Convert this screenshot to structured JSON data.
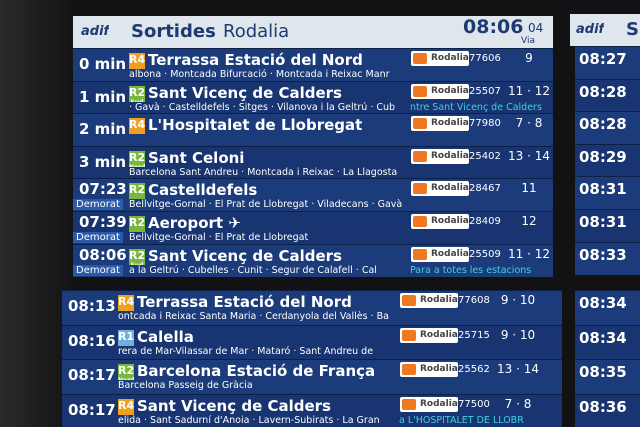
{
  "header": {
    "logo": "adif",
    "title_bold": "Sortides",
    "title": "Rodalia",
    "clock": "08:06",
    "seconds": "04",
    "platform_heading": "Via"
  },
  "boards": [
    {
      "rows": [
        {
          "time": "0 min",
          "line": "R4",
          "color": "#f0a020",
          "destination": "Terrassa Estació del Nord",
          "via": "albona · Montcada Bifurcació · Montcada i Reixac Manr",
          "operator": "Rodalia",
          "train": "77606",
          "platform": "9"
        },
        {
          "time": "1 min",
          "line": "R2",
          "line_sub": "Sud",
          "color": "#79b83a",
          "destination": "Sant Vicenç de Calders",
          "via": "· Gavà · Castelldefels · Sitges · Vilanova i la Geltrú · Cub",
          "operator": "Rodalia",
          "train": "25507",
          "platform": "11 · 12",
          "note": "ntre Sant Vicenç de Calders"
        },
        {
          "time": "2 min",
          "line": "R4",
          "color": "#f0a020",
          "destination": "L'Hospitalet de Llobregat",
          "operator": "Rodalia",
          "train": "77980",
          "platform": "7 · 8"
        },
        {
          "time": "3 min",
          "line": "R2",
          "line_sub": "Nord",
          "color": "#79b83a",
          "destination": "Sant Celoni",
          "via": "Barcelona Sant Andreu · Montcada i Reixac · La Llagosta",
          "operator": "Rodalia",
          "train": "25402",
          "platform": "13 · 14"
        },
        {
          "time": "07:23",
          "status": "Demorat",
          "line": "R2",
          "color": "#79b83a",
          "destination": "Castelldefels",
          "via": "Bellvitge-Gornal · El Prat de Llobregat · Viladecans · Gavà",
          "operator": "Rodalia",
          "train": "28467",
          "platform": "11"
        },
        {
          "time": "07:39",
          "status": "Demorat",
          "line": "R2",
          "color": "#79b83a",
          "destination": "Aeroport ✈",
          "via": "Bellvitge-Gornal · El Prat de Llobregat",
          "operator": "Rodalia",
          "train": "28409",
          "platform": "12"
        },
        {
          "time": "08:06",
          "status": "Demorat",
          "line": "R2",
          "line_sub": "Sud",
          "color": "#79b83a",
          "destination": "Sant Vicenç de Calders",
          "via": "a la Geltrú · Cubelles · Cunit · Segur de Calafell · Cal",
          "operator": "Rodalia",
          "train": "25509",
          "platform": "11 · 12",
          "note": "Para a totes les estacions"
        }
      ]
    },
    {
      "rows": [
        {
          "time": "08:13",
          "line": "R4",
          "color": "#f0a020",
          "destination": "Terrassa Estació del Nord",
          "via": "ontcada i Reixac Santa Maria · Cerdanyola del Vallès · Ba",
          "operator": "Rodalia",
          "train": "77608",
          "platform": "9 · 10"
        },
        {
          "time": "08:16",
          "line": "R1",
          "color": "#6fb0e0",
          "destination": "Calella",
          "via": "rera de Mar-Vilassar de Mar · Mataró · Sant Andreu de",
          "operator": "Rodalia",
          "train": "25715",
          "platform": "9 · 10"
        },
        {
          "time": "08:17",
          "line": "R2",
          "line_sub": "Nord",
          "color": "#79b83a",
          "destination": "Barcelona Estació de França",
          "via": "Barcelona Passeig de Gràcia",
          "operator": "Rodalia",
          "train": "25562",
          "platform": "13 · 14"
        },
        {
          "time": "08:17",
          "line": "R4",
          "color": "#f0a020",
          "destination": "Sant Vicenç de Calders",
          "via": "elida · Sant Sadurní d'Anoia · Lavern-Subirats · La Gran",
          "operator": "Rodalia",
          "train": "77500",
          "platform": "7 · 8",
          "note": "a L'HOSPITALET DE LLOBR"
        }
      ]
    }
  ],
  "right_board": {
    "header": "S",
    "times_top": [
      "08:27",
      "08:28",
      "08:28",
      "08:29",
      "08:31",
      "08:31",
      "08:33"
    ],
    "times_bottom": [
      "08:34",
      "08:34",
      "08:35",
      "08:36"
    ]
  }
}
